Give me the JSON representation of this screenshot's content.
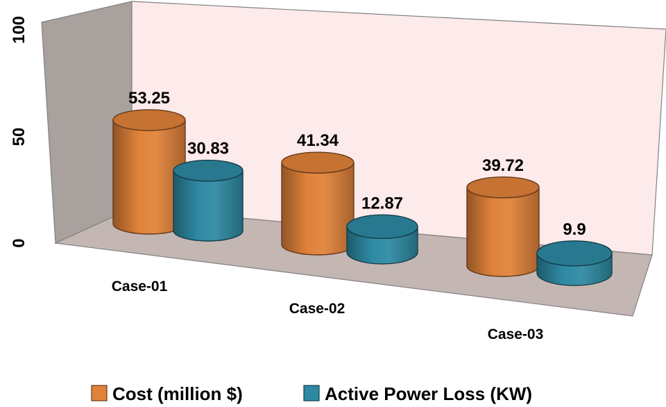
{
  "chart_data": {
    "type": "bar",
    "style": "3d-cylinder",
    "title": "",
    "xlabel": "",
    "ylabel": "",
    "ylim": [
      0,
      100
    ],
    "y_ticks": [
      "0",
      "50",
      "100"
    ],
    "categories": [
      "Case-01",
      "Case-02",
      "Case-03"
    ],
    "series": [
      {
        "name": "Cost (million $)",
        "values": [
          53.25,
          41.34,
          39.72
        ],
        "labels": [
          "53.25",
          "41.34",
          "39.72"
        ],
        "color": "#e0823a"
      },
      {
        "name": "Active Power Loss (KW)",
        "values": [
          30.83,
          12.87,
          9.9
        ],
        "labels": [
          "30.83",
          "12.87",
          "9.9"
        ],
        "color": "#2e8aa3"
      }
    ],
    "legend_position": "bottom",
    "grid": false,
    "colors": {
      "back_wall": "#fdeaea",
      "side_wall": "#a8a19d",
      "floor": "#c4b6b2",
      "frame": "#808080"
    }
  }
}
